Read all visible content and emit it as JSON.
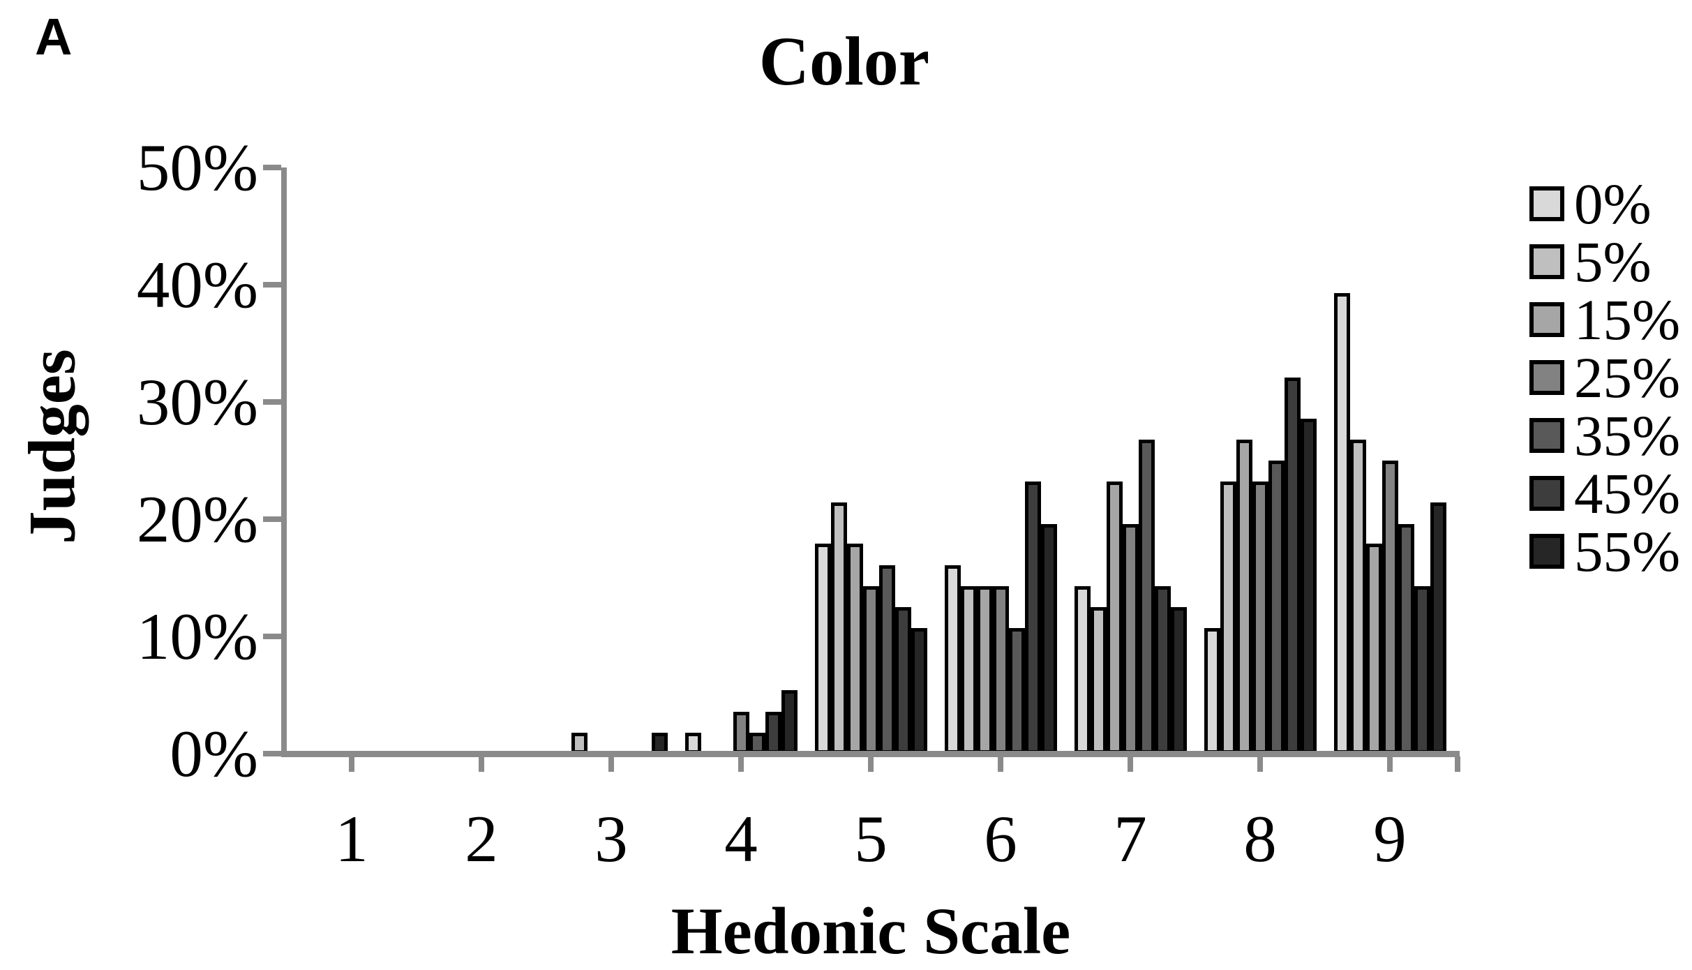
{
  "panel": {
    "label": "A"
  },
  "chart": {
    "title": "Color",
    "x_title": "Hedonic Scale",
    "y_title": "Judges"
  },
  "chart_data": {
    "type": "bar",
    "title": "Color",
    "xlabel": "Hedonic Scale",
    "ylabel": "Judges",
    "categories": [
      "1",
      "2",
      "3",
      "4",
      "5",
      "6",
      "7",
      "8",
      "9"
    ],
    "y_ticks": [
      "0%",
      "10%",
      "20%",
      "30%",
      "40%",
      "50%"
    ],
    "ylim": [
      0,
      50
    ],
    "grid": false,
    "legend_position": "right",
    "axis_color": "#8a8a8a",
    "bar_border_color": "#000000",
    "series": [
      {
        "name": "0%",
        "color": "#d9d9d9",
        "values": [
          0,
          0,
          0,
          1.8,
          17.9,
          16.1,
          14.3,
          10.7,
          39.3
        ]
      },
      {
        "name": "5%",
        "color": "#bfbfbf",
        "values": [
          0,
          0,
          1.8,
          0,
          21.4,
          14.3,
          12.5,
          23.2,
          26.8
        ]
      },
      {
        "name": "15%",
        "color": "#a6a6a6",
        "values": [
          0,
          0,
          0,
          0,
          17.9,
          14.3,
          23.2,
          26.8,
          17.9
        ]
      },
      {
        "name": "25%",
        "color": "#828282",
        "values": [
          0,
          0,
          0,
          3.6,
          14.3,
          14.3,
          19.6,
          23.2,
          25.0
        ]
      },
      {
        "name": "35%",
        "color": "#595959",
        "values": [
          0,
          0,
          0,
          1.8,
          16.1,
          10.7,
          26.8,
          25.0,
          19.6
        ]
      },
      {
        "name": "45%",
        "color": "#3d3d3d",
        "values": [
          0,
          0,
          0,
          3.6,
          12.5,
          23.2,
          14.3,
          32.1,
          14.3
        ]
      },
      {
        "name": "55%",
        "color": "#262626",
        "values": [
          0,
          0,
          1.8,
          5.4,
          10.7,
          19.6,
          12.5,
          28.6,
          21.4
        ]
      }
    ]
  }
}
